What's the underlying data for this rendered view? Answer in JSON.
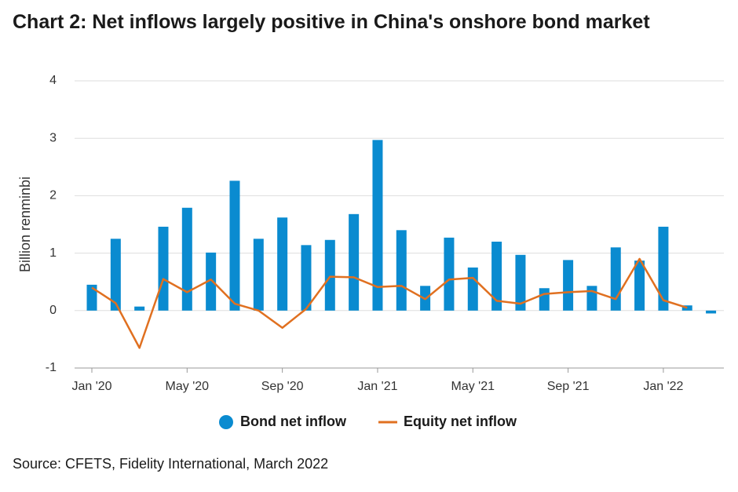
{
  "chart_data": {
    "type": "bar_line",
    "title": "Chart 2: Net inflows largely positive in China's onshore bond market",
    "source": "Source: CFETS, Fidelity International, March 2022",
    "y_label": "Billion renminbi",
    "categories": [
      "Jan '20",
      null,
      null,
      null,
      "May '20",
      null,
      null,
      null,
      "Sep '20",
      null,
      null,
      null,
      "Jan '21",
      null,
      null,
      null,
      "May '21",
      null,
      null,
      null,
      "Sep '21",
      null,
      null,
      null,
      "Jan '22",
      null,
      null
    ],
    "series": [
      {
        "name": "Bond net inflow",
        "type": "bar",
        "color": "#0a8bd0",
        "values": [
          0.45,
          1.25,
          0.07,
          1.46,
          1.79,
          1.01,
          2.26,
          1.25,
          1.62,
          1.14,
          1.23,
          1.68,
          2.97,
          1.4,
          0.43,
          1.27,
          0.75,
          1.2,
          0.97,
          0.39,
          0.88,
          0.43,
          1.1,
          0.87,
          1.46,
          0.09,
          -0.05
        ]
      },
      {
        "name": "Equity net inflow",
        "type": "line",
        "color": "#e07020",
        "values": [
          0.4,
          0.13,
          -0.65,
          0.55,
          0.32,
          0.54,
          0.12,
          0.0,
          -0.3,
          0.03,
          0.59,
          0.58,
          0.41,
          0.43,
          0.2,
          0.54,
          0.57,
          0.17,
          0.12,
          0.29,
          0.32,
          0.34,
          0.2,
          0.9,
          0.18,
          0.05,
          null
        ]
      }
    ],
    "ylim": [
      -1,
      4
    ],
    "yticks": [
      -1,
      0,
      1,
      2,
      3,
      4
    ],
    "grid": true,
    "legend": "bottom"
  }
}
